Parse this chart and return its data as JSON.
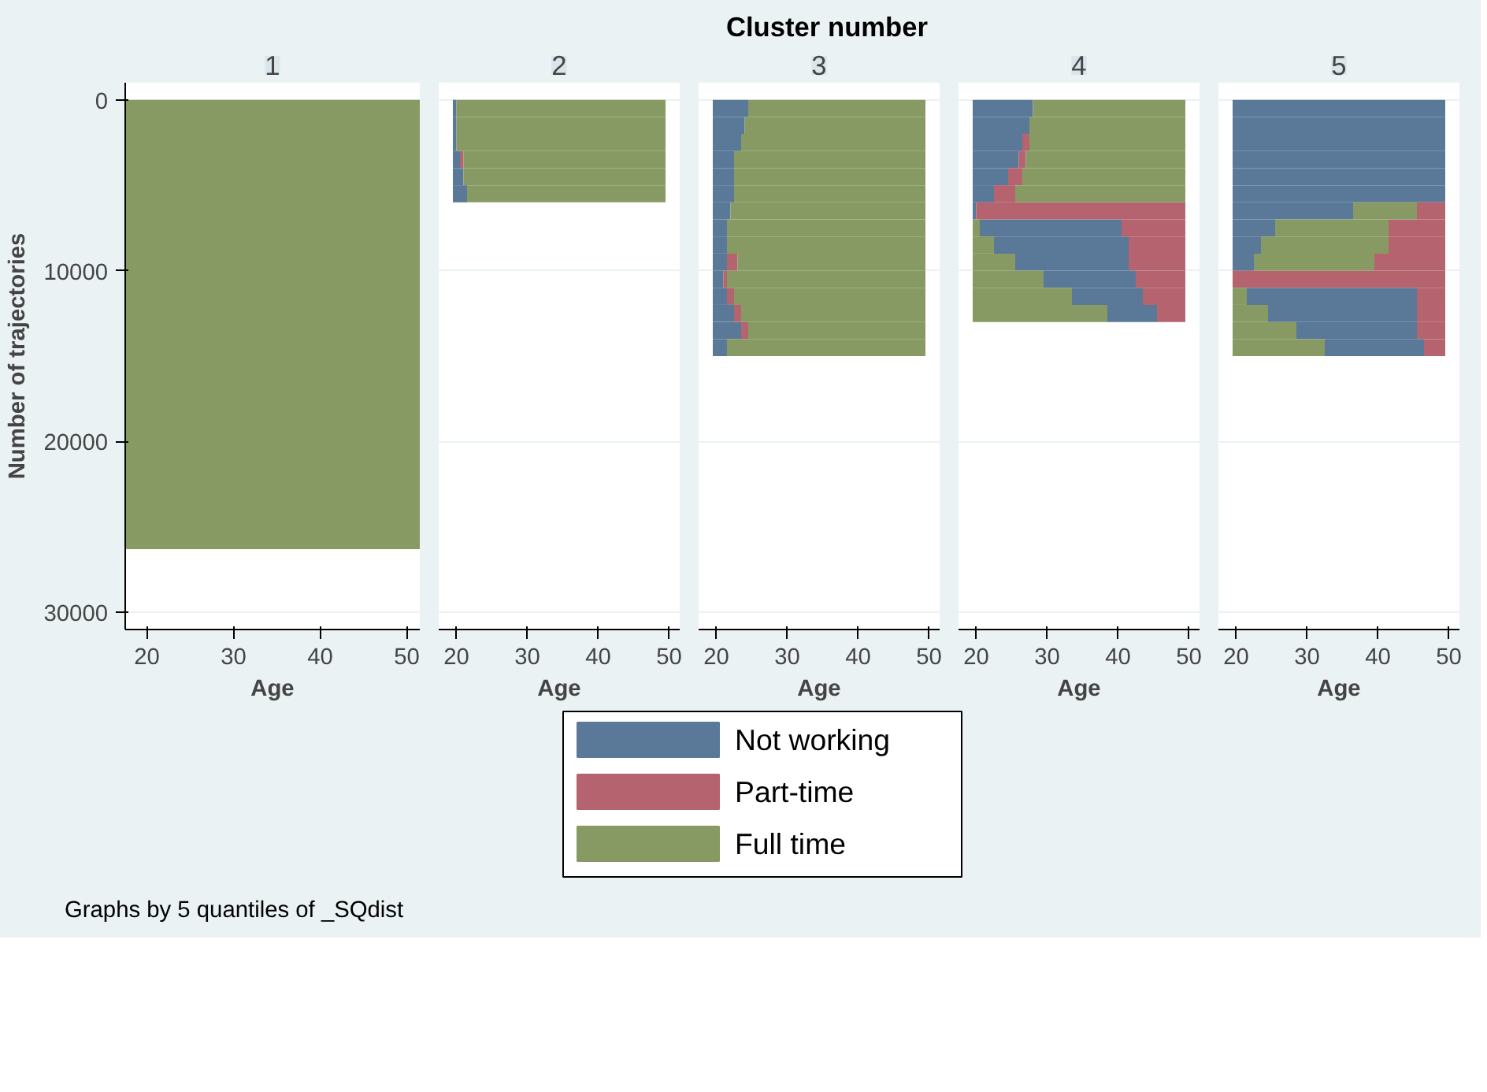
{
  "chart_data": [
    {
      "type": "bar",
      "orientation": "horizontal",
      "title": "1",
      "xlabel": "Age",
      "ylabel": "Number of trajectories",
      "annotations": [
        "Cluster number",
        "Graphs by 5 quantiles of _SQdist"
      ],
      "grid": "y",
      "tick_labels": true,
      "xlim": [
        17.5,
        51.5
      ],
      "xticks": [
        20,
        30,
        40,
        50
      ],
      "ylim": [
        31000,
        -1000
      ],
      "yticks": [
        0,
        10000,
        20000,
        30000
      ],
      "bands": [
        {
          "axis": "y",
          "from": 0,
          "to": 26300,
          "color": "#879a64"
        }
      ]
    },
    {
      "type": "bar",
      "orientation": "horizontal",
      "title": "2",
      "xlabel": "Age",
      "grid": "y",
      "tick_labels": "x",
      "x": [
        500,
        1500,
        2500,
        3500,
        4500,
        5500
      ],
      "xlim": [
        17.5,
        51.5
      ],
      "xticks": [
        20,
        30,
        40,
        50
      ],
      "ylim": [
        31000,
        -1000
      ],
      "yticks": [
        0,
        10000,
        20000,
        30000
      ],
      "series": [
        {
          "color": "#5a7898",
          "base": [
            19.5,
            19.5,
            19.5,
            19.5,
            19.5,
            19.5
          ],
          "values": [
            0.5,
            0.5,
            0.5,
            1,
            1.5,
            2
          ]
        },
        {
          "color": "#b4636f",
          "base": [
            null,
            null,
            null,
            20.5,
            null,
            null
          ],
          "values": [
            null,
            null,
            null,
            0.5,
            null,
            null
          ]
        },
        {
          "color": "#879a64",
          "base": [
            20,
            20,
            20,
            21,
            21,
            21.5
          ],
          "values": [
            29.5,
            29.5,
            29.5,
            28.5,
            28.5,
            28
          ]
        }
      ]
    },
    {
      "type": "bar",
      "orientation": "horizontal",
      "title": "3",
      "xlabel": "Age",
      "grid": "y",
      "tick_labels": "x",
      "legend": "bottom",
      "x": [
        500,
        1500,
        2500,
        3500,
        4500,
        5500,
        6500,
        7500,
        8500,
        9500,
        10500,
        11500,
        12500,
        13500,
        14500
      ],
      "xlim": [
        17.5,
        51.5
      ],
      "xticks": [
        20,
        30,
        40,
        50
      ],
      "ylim": [
        31000,
        -1000
      ],
      "yticks": [
        0,
        10000,
        20000,
        30000
      ],
      "series": [
        {
          "name": "Not working",
          "color": "#5a7898",
          "base": [
            19.5,
            19.5,
            19.5,
            19.5,
            19.5,
            19.5,
            19.5,
            19.5,
            19.5,
            19.5,
            19.5,
            19.5,
            19.5,
            19.5,
            19.5
          ],
          "values": [
            5,
            4.5,
            4,
            3,
            3,
            3,
            2.5,
            2,
            2,
            2,
            1.5,
            2,
            3,
            4,
            2
          ]
        },
        {
          "name": "Part-time",
          "color": "#b4636f",
          "base": [
            null,
            null,
            null,
            null,
            null,
            null,
            null,
            null,
            null,
            21.5,
            21,
            21.5,
            22.5,
            23.5,
            null
          ],
          "values": [
            null,
            null,
            null,
            null,
            null,
            null,
            null,
            null,
            null,
            1.5,
            0.5,
            1,
            1,
            1,
            null
          ]
        },
        {
          "name": "Full time",
          "color": "#879a64",
          "base": [
            24.5,
            24,
            23.5,
            22.5,
            22.5,
            22.5,
            22,
            21.5,
            21.5,
            23,
            21.5,
            22.5,
            23.5,
            24.5,
            21.5
          ],
          "values": [
            25,
            25.5,
            26,
            27,
            27,
            27,
            27.5,
            28,
            28,
            26.5,
            28,
            27,
            26,
            25,
            28
          ]
        }
      ]
    },
    {
      "type": "bar",
      "orientation": "horizontal",
      "title": "4",
      "xlabel": "Age",
      "grid": "y",
      "tick_labels": "x",
      "x": [
        500,
        1500,
        2500,
        3500,
        4500,
        5500,
        6500,
        7500,
        8500,
        9500,
        10500,
        11500,
        12500
      ],
      "xlim": [
        17.5,
        51.5
      ],
      "xticks": [
        20,
        30,
        40,
        50
      ],
      "ylim": [
        31000,
        -1000
      ],
      "yticks": [
        0,
        10000,
        20000,
        30000
      ],
      "series": [
        {
          "color": "#5a7898",
          "base": [
            19.5,
            19.5,
            19.5,
            19.5,
            19.5,
            19.5,
            19.5,
            20.5,
            22.5,
            25.5,
            29.5,
            33.5,
            38.5
          ],
          "values": [
            8.5,
            8,
            7,
            6.5,
            5,
            3,
            0.5,
            20,
            19,
            16,
            13,
            10,
            7
          ]
        },
        {
          "color": "#b4636f",
          "base": [
            null,
            null,
            26.5,
            26,
            24.5,
            22.5,
            20,
            40.5,
            41.5,
            41.5,
            42.5,
            43.5,
            45.5
          ],
          "values": [
            null,
            null,
            1,
            1,
            2,
            3,
            29.5,
            9,
            8,
            8,
            7,
            6,
            4
          ]
        },
        {
          "color": "#879a64",
          "base": [
            28,
            27.5,
            27.5,
            27,
            26.5,
            25.5,
            null,
            19.5,
            19.5,
            19.5,
            19.5,
            19.5,
            19.5
          ],
          "values": [
            21.5,
            22,
            22,
            22.5,
            23,
            24,
            null,
            1,
            3,
            6,
            10,
            14,
            19
          ]
        }
      ]
    },
    {
      "type": "bar",
      "orientation": "horizontal",
      "title": "5",
      "xlabel": "Age",
      "grid": "y",
      "tick_labels": "x",
      "x": [
        500,
        1500,
        2500,
        3500,
        4500,
        5500,
        6500,
        7500,
        8500,
        9500,
        10500,
        11500,
        12500,
        13500,
        14500
      ],
      "xlim": [
        17.5,
        51.5
      ],
      "xticks": [
        20,
        30,
        40,
        50
      ],
      "ylim": [
        31000,
        -1000
      ],
      "yticks": [
        0,
        10000,
        20000,
        30000
      ],
      "series": [
        {
          "color": "#5a7898",
          "base": [
            19.5,
            19.5,
            19.5,
            19.5,
            19.5,
            19.5,
            19.5,
            19.5,
            19.5,
            19.5,
            null,
            21.5,
            24.5,
            28.5,
            32.5
          ],
          "values": [
            30,
            30,
            30,
            30,
            30,
            30,
            17,
            6,
            4,
            3,
            null,
            24,
            21,
            17,
            14
          ]
        },
        {
          "color": "#b4636f",
          "base": [
            null,
            null,
            null,
            null,
            null,
            null,
            45.5,
            41.5,
            41.5,
            39.5,
            19.5,
            45.5,
            45.5,
            45.5,
            46.5
          ],
          "values": [
            null,
            null,
            null,
            null,
            null,
            null,
            4,
            8,
            8,
            10,
            30,
            4,
            4,
            4,
            3
          ]
        },
        {
          "color": "#879a64",
          "base": [
            null,
            null,
            null,
            null,
            null,
            null,
            36.5,
            25.5,
            23.5,
            22.5,
            null,
            19.5,
            19.5,
            19.5,
            19.5
          ],
          "values": [
            null,
            null,
            null,
            null,
            null,
            null,
            9,
            16,
            18,
            17,
            null,
            2,
            5,
            9,
            13
          ]
        }
      ]
    }
  ]
}
